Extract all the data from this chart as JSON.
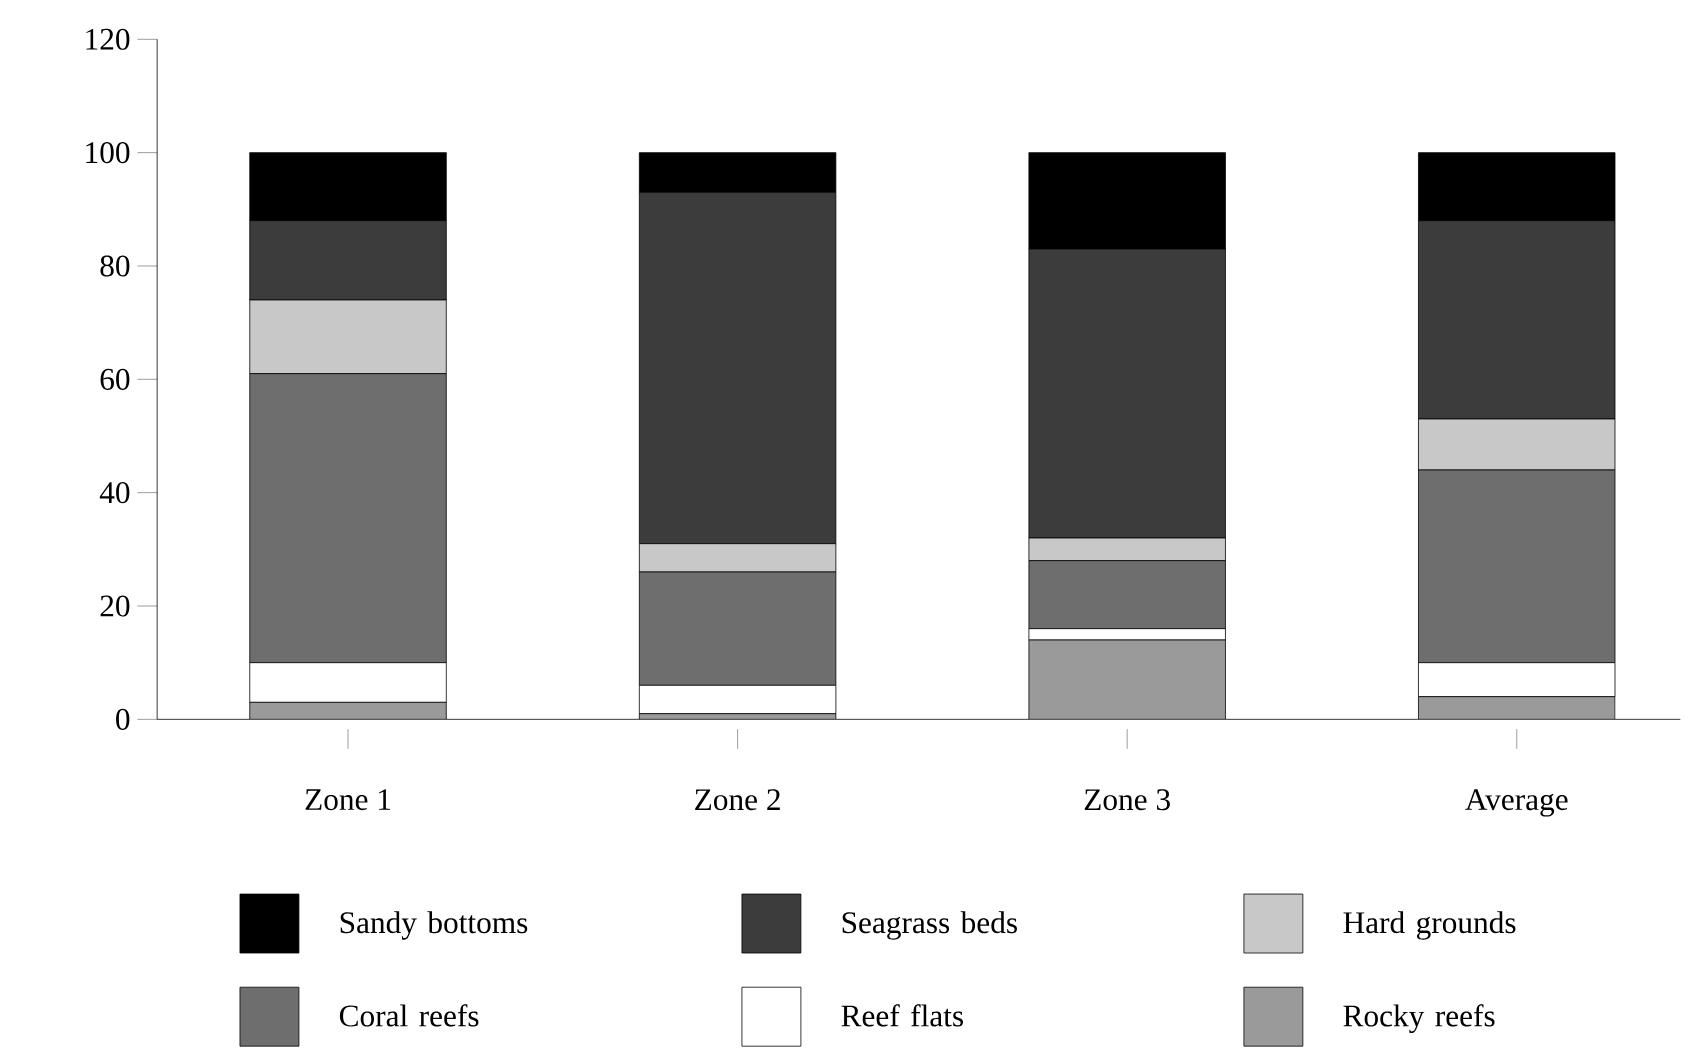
{
  "chart_data": {
    "type": "bar",
    "stacked": true,
    "categories": [
      "Zone 1",
      "Zone 2",
      "Zone 3",
      "Average"
    ],
    "series": [
      {
        "name": "Rocky reefs",
        "color": "#9a9a9a",
        "values": [
          3,
          1,
          14,
          4
        ]
      },
      {
        "name": "Reef flats",
        "color": "#ffffff",
        "values": [
          7,
          5,
          2,
          6
        ]
      },
      {
        "name": "Coral reefs",
        "color": "#6e6e6e",
        "values": [
          51,
          20,
          12,
          34
        ]
      },
      {
        "name": "Hard grounds",
        "color": "#c8c8c8",
        "values": [
          13,
          5,
          4,
          9
        ]
      },
      {
        "name": "Seagrass beds",
        "color": "#3c3c3c",
        "values": [
          14,
          62,
          51,
          35
        ]
      },
      {
        "name": "Sandy bottoms",
        "color": "#000000",
        "values": [
          12,
          7,
          17,
          12
        ]
      }
    ],
    "ylim": [
      0,
      120
    ],
    "yticks": [
      0,
      20,
      40,
      60,
      80,
      100,
      120
    ],
    "legend": "bottom"
  }
}
